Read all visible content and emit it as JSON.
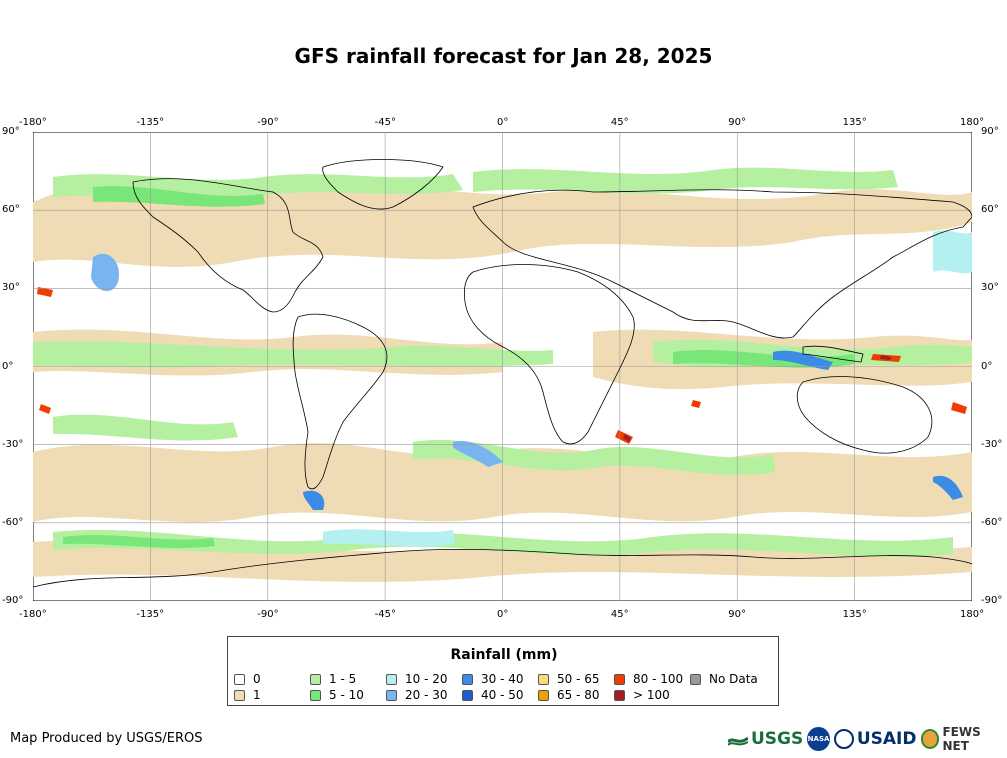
{
  "title": "GFS rainfall forecast for Jan 28, 2025",
  "axes": {
    "lon_ticks": [
      "-180°",
      "-135°",
      "-90°",
      "-45°",
      "0°",
      "45°",
      "90°",
      "135°",
      "180°"
    ],
    "lat_ticks": [
      "90°",
      "60°",
      "30°",
      "0°",
      "-30°",
      "-60°",
      "-90°"
    ]
  },
  "legend": {
    "title": "Rainfall (mm)",
    "items": [
      {
        "label": "0",
        "color": "#ffffff"
      },
      {
        "label": "1",
        "color": "#f0dcb4"
      },
      {
        "label": "1 - 5",
        "color": "#b4f0a0"
      },
      {
        "label": "5 - 10",
        "color": "#78e678"
      },
      {
        "label": "10 - 20",
        "color": "#b4f0f0"
      },
      {
        "label": "20 - 30",
        "color": "#78b4f0"
      },
      {
        "label": "30 - 40",
        "color": "#3c8ce6"
      },
      {
        "label": "40 - 50",
        "color": "#1e5ad2"
      },
      {
        "label": "50 - 65",
        "color": "#f5dc78"
      },
      {
        "label": "65 - 80",
        "color": "#f0a000"
      },
      {
        "label": "80 - 100",
        "color": "#f03c00"
      },
      {
        "label": "> 100",
        "color": "#a01e1e"
      },
      {
        "label": "No Data",
        "color": "#999999"
      }
    ]
  },
  "credit": "Map Produced by USGS/EROS",
  "logos": {
    "usgs": "USGS",
    "nasa": "NASA",
    "usaid": "USAID",
    "fews": "FEWS NET"
  }
}
